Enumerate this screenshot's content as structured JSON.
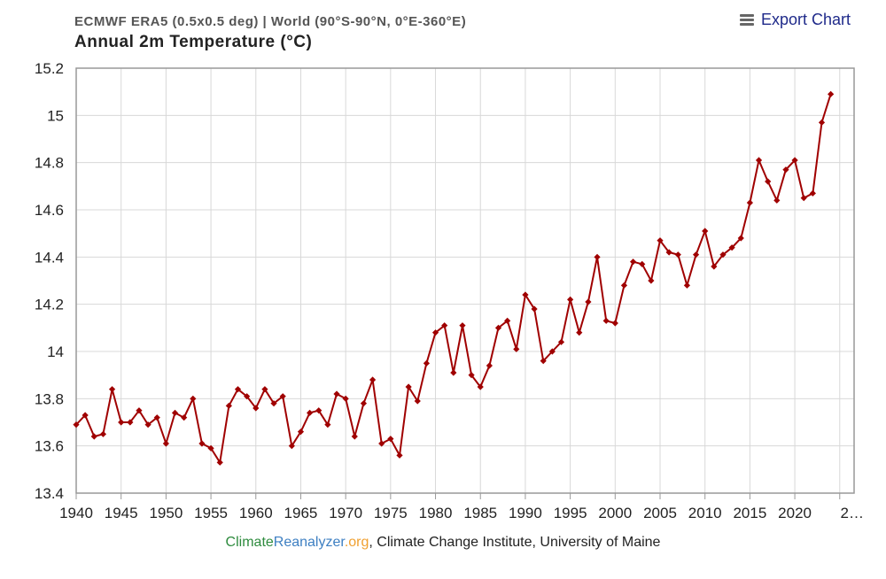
{
  "header": {
    "subtitle": "ECMWF ERA5 (0.5x0.5 deg) | World (90°S-90°N, 0°E-360°E)",
    "title": "Annual 2m Temperature (°C)",
    "export_label": "Export Chart",
    "export_icon": "menu-icon"
  },
  "credits": {
    "part1": "Climate",
    "part2": "Reanalyzer",
    "part3": ".org",
    "rest": ", Climate Change Institute, University of Maine"
  },
  "chart_data": {
    "type": "line",
    "title": "Annual 2m Temperature (°C)",
    "subtitle": "ECMWF ERA5 (0.5x0.5 deg) | World (90°S-90°N, 0°E-360°E)",
    "xlabel": "",
    "ylabel": "",
    "ylim": [
      13.4,
      15.2
    ],
    "yticks": [
      "13.4",
      "13.6",
      "13.8",
      "14",
      "14.2",
      "14.4",
      "14.6",
      "14.8",
      "15",
      "15.2"
    ],
    "xticks": [
      "1940",
      "1945",
      "1950",
      "1955",
      "1960",
      "1965",
      "1970",
      "1975",
      "1980",
      "1985",
      "1990",
      "1995",
      "2000",
      "2005",
      "2010",
      "2015",
      "2020",
      "2…"
    ],
    "grid": true,
    "color": "#a00000",
    "series": [
      {
        "name": "World",
        "x": [
          1940,
          1941,
          1942,
          1943,
          1944,
          1945,
          1946,
          1947,
          1948,
          1949,
          1950,
          1951,
          1952,
          1953,
          1954,
          1955,
          1956,
          1957,
          1958,
          1959,
          1960,
          1961,
          1962,
          1963,
          1964,
          1965,
          1966,
          1967,
          1968,
          1969,
          1970,
          1971,
          1972,
          1973,
          1974,
          1975,
          1976,
          1977,
          1978,
          1979,
          1980,
          1981,
          1982,
          1983,
          1984,
          1985,
          1986,
          1987,
          1988,
          1989,
          1990,
          1991,
          1992,
          1993,
          1994,
          1995,
          1996,
          1997,
          1998,
          1999,
          2000,
          2001,
          2002,
          2003,
          2004,
          2005,
          2006,
          2007,
          2008,
          2009,
          2010,
          2011,
          2012,
          2013,
          2014,
          2015,
          2016,
          2017,
          2018,
          2019,
          2020,
          2021,
          2022,
          2023,
          2024
        ],
        "values": [
          13.69,
          13.73,
          13.64,
          13.65,
          13.84,
          13.7,
          13.7,
          13.75,
          13.69,
          13.72,
          13.61,
          13.74,
          13.72,
          13.8,
          13.61,
          13.59,
          13.53,
          13.77,
          13.84,
          13.81,
          13.76,
          13.84,
          13.78,
          13.81,
          13.6,
          13.66,
          13.74,
          13.75,
          13.69,
          13.82,
          13.8,
          13.64,
          13.78,
          13.88,
          13.61,
          13.63,
          13.56,
          13.85,
          13.79,
          13.95,
          14.08,
          14.11,
          13.91,
          14.11,
          13.9,
          13.85,
          13.94,
          14.1,
          14.13,
          14.01,
          14.24,
          14.18,
          13.96,
          14.0,
          14.04,
          14.22,
          14.08,
          14.21,
          14.4,
          14.13,
          14.12,
          14.28,
          14.38,
          14.37,
          14.3,
          14.47,
          14.42,
          14.41,
          14.28,
          14.41,
          14.51,
          14.36,
          14.41,
          14.44,
          14.48,
          14.63,
          14.81,
          14.72,
          14.64,
          14.77,
          14.81,
          14.65,
          14.67,
          14.97,
          15.09
        ]
      }
    ]
  }
}
